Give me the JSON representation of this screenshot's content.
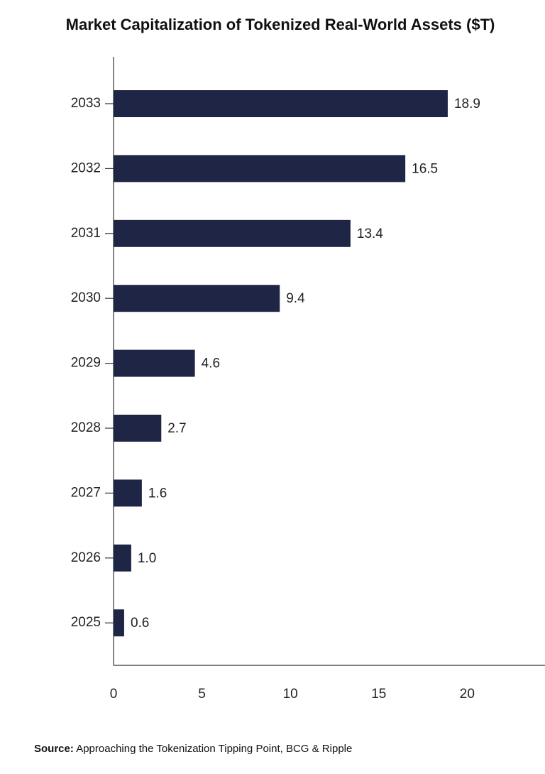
{
  "chart_data": {
    "type": "bar",
    "orientation": "horizontal",
    "title": "Market Capitalization of Tokenized Real-World Assets ($T)",
    "categories": [
      "2033",
      "2032",
      "2031",
      "2030",
      "2029",
      "2028",
      "2027",
      "2026",
      "2025"
    ],
    "values": [
      18.9,
      16.5,
      13.4,
      9.4,
      4.6,
      2.7,
      1.6,
      1.0,
      0.6
    ],
    "value_labels": [
      "18.9",
      "16.5",
      "13.4",
      "9.4",
      "4.6",
      "2.7",
      "1.6",
      "1.0",
      "0.6"
    ],
    "x_ticks": [
      0,
      5,
      10,
      15,
      20
    ],
    "xlim": [
      0,
      24.4
    ],
    "xlabel": "",
    "ylabel": "",
    "grid": false,
    "bar_color": "#1f2645"
  },
  "source": {
    "label": "Source:",
    "text": "Approaching the Tokenization Tipping Point, BCG & Ripple"
  }
}
